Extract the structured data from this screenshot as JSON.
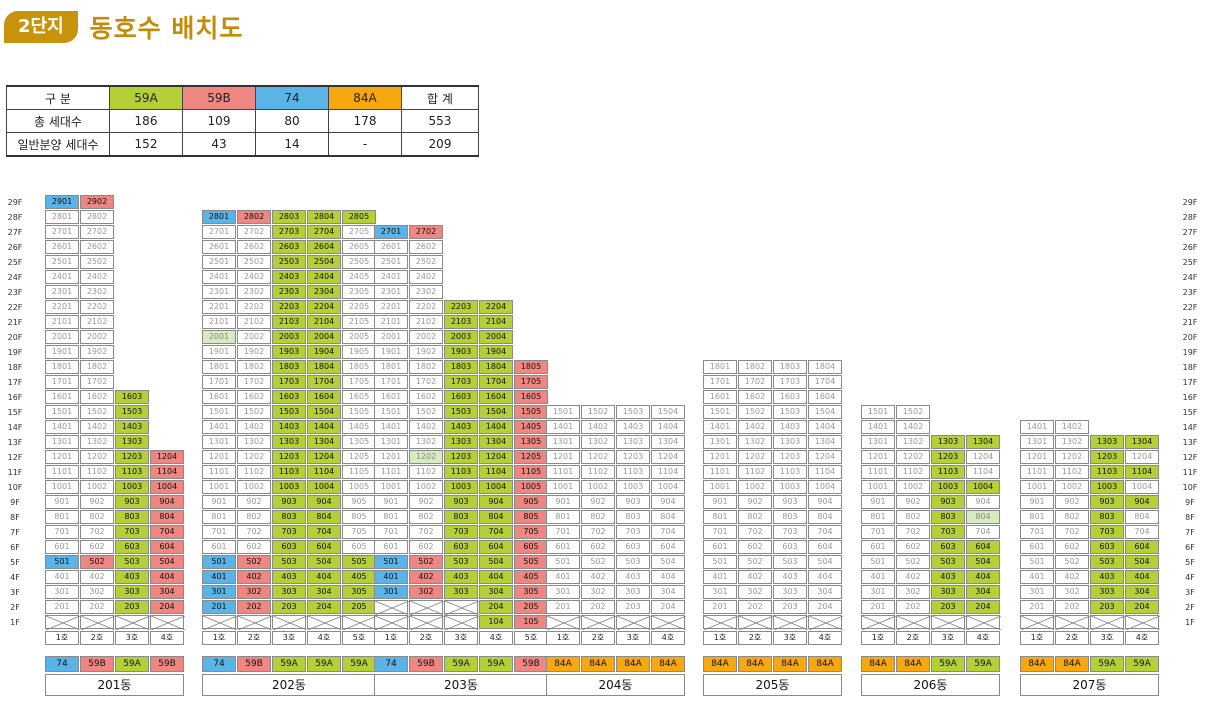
{
  "header": {
    "complex_label": "2단지",
    "title": "동호수 배치도"
  },
  "colors": {
    "59A": "#b5cf37",
    "59B": "#ee8782",
    "74": "#5ab4e8",
    "84A": "#f7a810",
    "gen": "#ffffff"
  },
  "summary": {
    "headers": [
      "구 분",
      "59A",
      "59B",
      "74",
      "84A",
      "합 계"
    ],
    "rows": [
      [
        "총 세대수",
        "186",
        "109",
        "80",
        "178",
        "553"
      ],
      [
        "일반분양 세대수",
        "152",
        "43",
        "14",
        "-",
        "209"
      ]
    ]
  },
  "floors": [
    "29F",
    "28F",
    "27F",
    "26F",
    "25F",
    "24F",
    "23F",
    "22F",
    "21F",
    "20F",
    "19F",
    "18F",
    "17F",
    "16F",
    "15F",
    "14F",
    "13F",
    "12F",
    "11F",
    "10F",
    "9F",
    "8F",
    "7F",
    "6F",
    "5F",
    "4F",
    "3F",
    "2F",
    "1F"
  ],
  "buildings": [
    {
      "name": "201동",
      "hos": [
        "1호",
        "2호",
        "3호",
        "4호"
      ],
      "types": [
        "74",
        "59B",
        "59A",
        "59B"
      ],
      "tops": [
        29,
        29,
        16,
        12
      ],
      "blank1": [
        1,
        1,
        1,
        1
      ],
      "firstFloor": [
        2,
        2,
        2,
        2
      ],
      "genRanges": [
        [
          5,
          5,
          29,
          29
        ],
        [
          5,
          5,
          29,
          29
        ],
        [
          1,
          99
        ],
        [
          1,
          99
        ]
      ],
      "lightgreen": []
    },
    {
      "name": "202동",
      "hos": [
        "1호",
        "2호",
        "3호",
        "4호",
        "5호"
      ],
      "types": [
        "74",
        "59B",
        "59A",
        "59A",
        "59A"
      ],
      "tops": [
        28,
        28,
        28,
        28,
        28
      ],
      "firstFloor": [
        2,
        2,
        2,
        2,
        2
      ],
      "genRanges": [
        [
          2,
          5,
          28,
          28
        ],
        [
          2,
          5,
          28,
          28
        ],
        [
          1,
          99
        ],
        [
          1,
          99
        ],
        [
          2,
          5,
          28,
          28
        ]
      ],
      "lightgreen": [
        "2001"
      ]
    },
    {
      "name": "203동",
      "hos": [
        "1호",
        "2호",
        "3호",
        "4호",
        "5호"
      ],
      "types": [
        "74",
        "59B",
        "59A",
        "59A",
        "59B"
      ],
      "tops": [
        27,
        27,
        22,
        22,
        18
      ],
      "firstFloor": [
        3,
        3,
        3,
        1,
        1
      ],
      "genRanges": [
        [
          3,
          5,
          27,
          27
        ],
        [
          3,
          5,
          27,
          27
        ],
        [
          1,
          99
        ],
        [
          1,
          99
        ],
        [
          1,
          99
        ]
      ],
      "lightgreen": [
        "1202"
      ]
    },
    {
      "name": "204동",
      "hos": [
        "1호",
        "2호",
        "3호",
        "4호"
      ],
      "types": [
        "84A",
        "84A",
        "84A",
        "84A"
      ],
      "tops": [
        15,
        15,
        15,
        15
      ],
      "firstFloor": [
        2,
        2,
        2,
        2
      ],
      "genRanges": [
        [],
        [],
        [],
        []
      ],
      "lightgreen": []
    },
    {
      "name": "205동",
      "hos": [
        "1호",
        "2호",
        "3호",
        "4호"
      ],
      "types": [
        "84A",
        "84A",
        "84A",
        "84A"
      ],
      "tops": [
        18,
        18,
        18,
        18
      ],
      "firstFloor": [
        2,
        2,
        2,
        2
      ],
      "genRanges": [
        [],
        [],
        [],
        []
      ],
      "lightgreen": []
    },
    {
      "name": "206동",
      "hos": [
        "1호",
        "2호",
        "3호",
        "4호"
      ],
      "types": [
        "84A",
        "84A",
        "59A",
        "59A"
      ],
      "tops": [
        15,
        15,
        13,
        13
      ],
      "firstFloor": [
        2,
        2,
        2,
        2
      ],
      "genRanges": [
        [],
        [],
        [
          2,
          13
        ],
        [
          2,
          13
        ]
      ],
      "genExclude": [
        "1204",
        "1104",
        "904",
        "804",
        "704"
      ],
      "lightgreen": [
        "804"
      ]
    },
    {
      "name": "207동",
      "hos": [
        "1호",
        "2호",
        "3호",
        "4호"
      ],
      "types": [
        "84A",
        "84A",
        "59A",
        "59A"
      ],
      "tops": [
        14,
        14,
        13,
        13
      ],
      "firstFloor": [
        2,
        2,
        2,
        2
      ],
      "genRanges": [
        [],
        [],
        [
          2,
          13
        ],
        [
          2,
          13
        ]
      ],
      "genExclude": [
        "1204",
        "1004",
        "804",
        "704"
      ],
      "lightgreen": []
    }
  ]
}
